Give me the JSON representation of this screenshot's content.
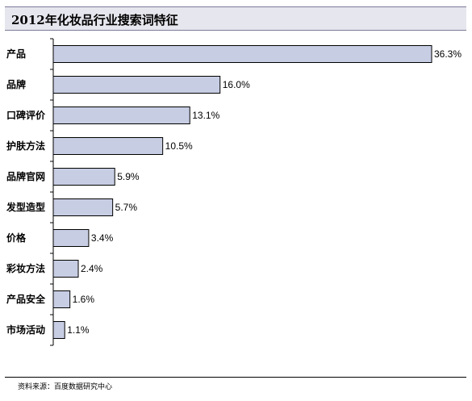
{
  "title": "2012年化妆品行业搜索词特征",
  "source": "资料来源：百度数据研究中心",
  "chart_data": {
    "type": "bar",
    "orientation": "horizontal",
    "title": "2012年化妆品行业搜索词特征",
    "categories": [
      "产品",
      "品牌",
      "口碑评价",
      "护肤方法",
      "品牌官网",
      "发型造型",
      "价格",
      "彩妆方法",
      "产品安全",
      "市场活动"
    ],
    "values": [
      36.3,
      16.0,
      13.1,
      10.5,
      5.9,
      5.7,
      3.4,
      2.4,
      1.6,
      1.1
    ],
    "value_labels": [
      "36.3%",
      "16.0%",
      "13.1%",
      "10.5%",
      "5.9%",
      "5.7%",
      "3.4%",
      "2.4%",
      "1.6%",
      "1.1%"
    ],
    "xlim": [
      0,
      36.3
    ],
    "grid": false,
    "bar_color": "#c7cde3"
  }
}
